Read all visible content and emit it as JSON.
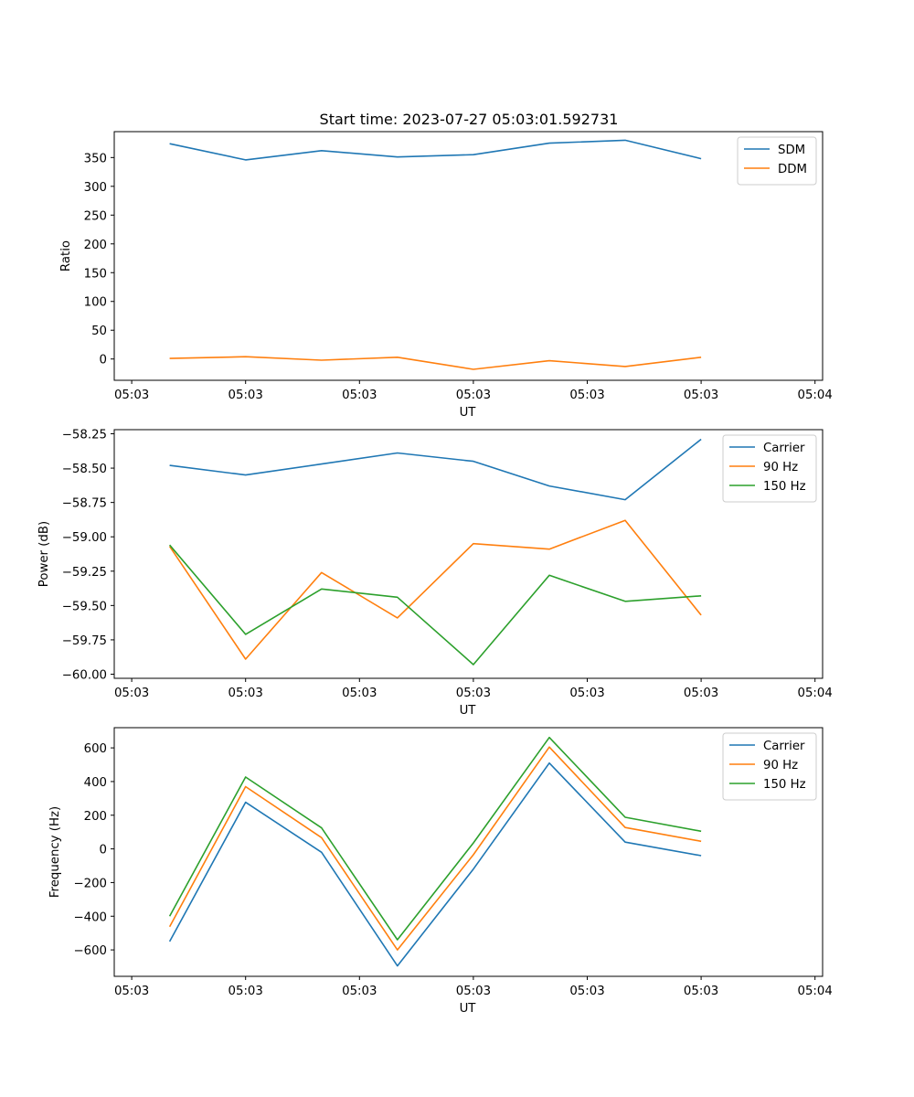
{
  "figure": {
    "title": "Start time: 2023-07-27 05:03:01.592731"
  },
  "chart_data": [
    {
      "type": "line",
      "title": "Start time: 2023-07-27 05:03:01.592731",
      "xlabel": "UT",
      "ylabel": "Ratio",
      "x_tick_labels": [
        "05:03",
        "05:03",
        "05:03",
        "05:03",
        "05:03",
        "05:03",
        "05:04"
      ],
      "xlim": [
        -0.23,
        9.1
      ],
      "x": [
        0.5,
        1.5,
        2.5,
        3.5,
        4.5,
        5.5,
        6.5,
        7.5
      ],
      "ylim": [
        -37,
        395
      ],
      "yticks": [
        0,
        50,
        100,
        150,
        200,
        250,
        300,
        350
      ],
      "legend": "top-right",
      "series": [
        {
          "name": "SDM",
          "color": "#1f77b4",
          "values": [
            374,
            346,
            362,
            351,
            355,
            375,
            380,
            348
          ]
        },
        {
          "name": "DDM",
          "color": "#ff7f0e",
          "values": [
            1,
            4,
            -2,
            3,
            -18,
            -3,
            -13,
            3
          ]
        }
      ]
    },
    {
      "type": "line",
      "xlabel": "UT",
      "ylabel": "Power (dB)",
      "x_tick_labels": [
        "05:03",
        "05:03",
        "05:03",
        "05:03",
        "05:03",
        "05:03",
        "05:04"
      ],
      "xlim": [
        -0.23,
        9.1
      ],
      "x": [
        0.5,
        1.5,
        2.5,
        3.5,
        4.5,
        5.5,
        6.5,
        7.5
      ],
      "ylim": [
        -60.03,
        -58.22
      ],
      "yticks": [
        -60.0,
        -59.75,
        -59.5,
        -59.25,
        -59.0,
        -58.75,
        -58.5,
        -58.25
      ],
      "ytick_labels": [
        "−60.00",
        "−59.75",
        "−59.50",
        "−59.25",
        "−59.00",
        "−58.75",
        "−58.50",
        "−58.25"
      ],
      "legend": "top-right",
      "series": [
        {
          "name": "Carrier",
          "color": "#1f77b4",
          "values": [
            -58.48,
            -58.55,
            -58.47,
            -58.39,
            -58.45,
            -58.63,
            -58.73,
            -58.29
          ]
        },
        {
          "name": "90 Hz",
          "color": "#ff7f0e",
          "values": [
            -59.07,
            -59.89,
            -59.26,
            -59.59,
            -59.05,
            -59.09,
            -58.88,
            -59.57
          ]
        },
        {
          "name": "150 Hz",
          "color": "#2ca02c",
          "values": [
            -59.06,
            -59.71,
            -59.38,
            -59.44,
            -59.93,
            -59.28,
            -59.47,
            -59.43
          ]
        }
      ]
    },
    {
      "type": "line",
      "xlabel": "UT",
      "ylabel": "Frequency (Hz)",
      "x_tick_labels": [
        "05:03",
        "05:03",
        "05:03",
        "05:03",
        "05:03",
        "05:03",
        "05:04"
      ],
      "xlim": [
        -0.23,
        9.1
      ],
      "x": [
        0.5,
        1.5,
        2.5,
        3.5,
        4.5,
        5.5,
        6.5,
        7.5
      ],
      "ylim": [
        -757,
        720
      ],
      "yticks": [
        -600,
        -400,
        -200,
        0,
        200,
        400,
        600
      ],
      "ytick_labels": [
        "−600",
        "−400",
        "−200",
        "0",
        "200",
        "400",
        "600"
      ],
      "legend": "top-right",
      "series": [
        {
          "name": "Carrier",
          "color": "#1f77b4",
          "values": [
            -550,
            277,
            -20,
            -695,
            -120,
            510,
            40,
            -40
          ]
        },
        {
          "name": "90 Hz",
          "color": "#ff7f0e",
          "values": [
            -462,
            370,
            67,
            -600,
            -35,
            605,
            127,
            45
          ]
        },
        {
          "name": "150 Hz",
          "color": "#2ca02c",
          "values": [
            -400,
            427,
            125,
            -540,
            35,
            662,
            188,
            105
          ]
        }
      ]
    }
  ]
}
